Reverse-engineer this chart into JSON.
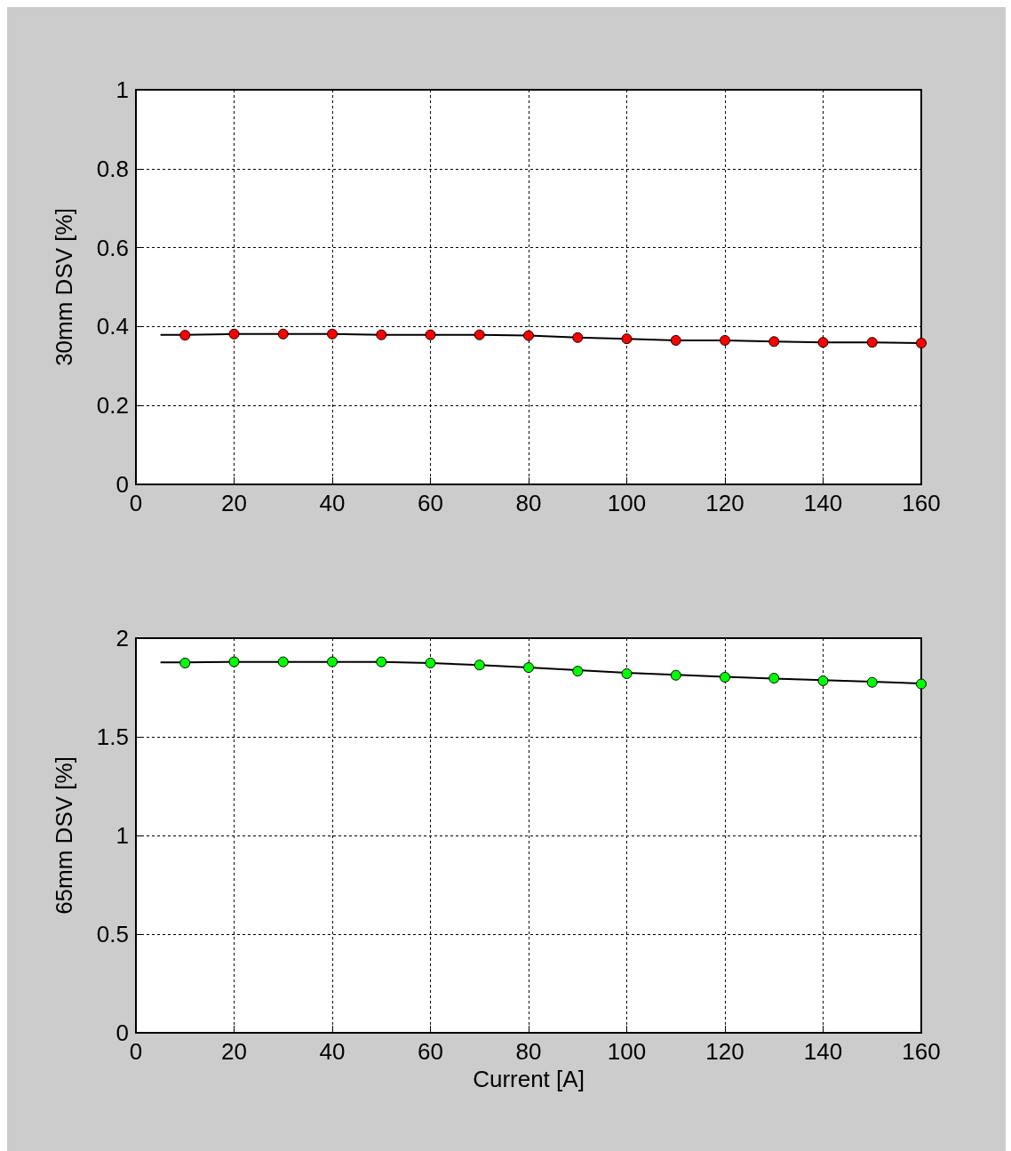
{
  "chart_data": [
    {
      "type": "scatter",
      "ylabel": "30mm DSV [%]",
      "xlim": [
        0,
        160
      ],
      "xticks": [
        0,
        20,
        40,
        60,
        80,
        100,
        120,
        140,
        160
      ],
      "ylim": [
        0,
        1
      ],
      "yticks": [
        0,
        0.2,
        0.4,
        0.6,
        0.8,
        1
      ],
      "grid": true,
      "marker": "circle",
      "series": [
        {
          "type": "line",
          "color": "#000000",
          "marker": "none",
          "line_style": "solid",
          "x": [
            5,
            10,
            20,
            30,
            40,
            50,
            60,
            70,
            80,
            90,
            100,
            110,
            120,
            130,
            140,
            150,
            160
          ],
          "values": [
            0.379,
            0.379,
            0.381,
            0.381,
            0.381,
            0.379,
            0.379,
            0.379,
            0.377,
            0.372,
            0.369,
            0.365,
            0.365,
            0.362,
            0.36,
            0.36,
            0.358
          ]
        },
        {
          "color": "#ff0000",
          "x": [
            10,
            20,
            30,
            40,
            50,
            60,
            70,
            80,
            90,
            100,
            110,
            120,
            130,
            140,
            150,
            160
          ],
          "values": [
            0.378,
            0.381,
            0.381,
            0.381,
            0.379,
            0.379,
            0.379,
            0.377,
            0.372,
            0.369,
            0.365,
            0.365,
            0.362,
            0.36,
            0.36,
            0.358
          ]
        }
      ]
    },
    {
      "type": "scatter",
      "xlabel": "Current [A]",
      "ylabel": "65mm DSV [%]",
      "xlim": [
        0,
        160
      ],
      "xticks": [
        0,
        20,
        40,
        60,
        80,
        100,
        120,
        140,
        160
      ],
      "ylim": [
        0,
        2
      ],
      "yticks": [
        0,
        0.5,
        1,
        1.5,
        2
      ],
      "grid": true,
      "marker": "circle",
      "series": [
        {
          "type": "line",
          "color": "#000000",
          "marker": "none",
          "line_style": "solid",
          "x": [
            5,
            10,
            20,
            30,
            40,
            50,
            60,
            70,
            80,
            90,
            100,
            110,
            120,
            130,
            140,
            150,
            160
          ],
          "values": [
            1.877,
            1.877,
            1.88,
            1.88,
            1.88,
            1.88,
            1.874,
            1.864,
            1.851,
            1.838,
            1.824,
            1.814,
            1.804,
            1.795,
            1.787,
            1.779,
            1.77
          ]
        },
        {
          "color": "#00ff00",
          "x": [
            10,
            20,
            30,
            40,
            50,
            60,
            70,
            80,
            90,
            100,
            110,
            120,
            130,
            140,
            150,
            160
          ],
          "values": [
            1.874,
            1.88,
            1.88,
            1.88,
            1.88,
            1.874,
            1.864,
            1.851,
            1.833,
            1.82,
            1.812,
            1.802,
            1.797,
            1.784,
            1.776,
            1.768
          ]
        }
      ]
    }
  ]
}
